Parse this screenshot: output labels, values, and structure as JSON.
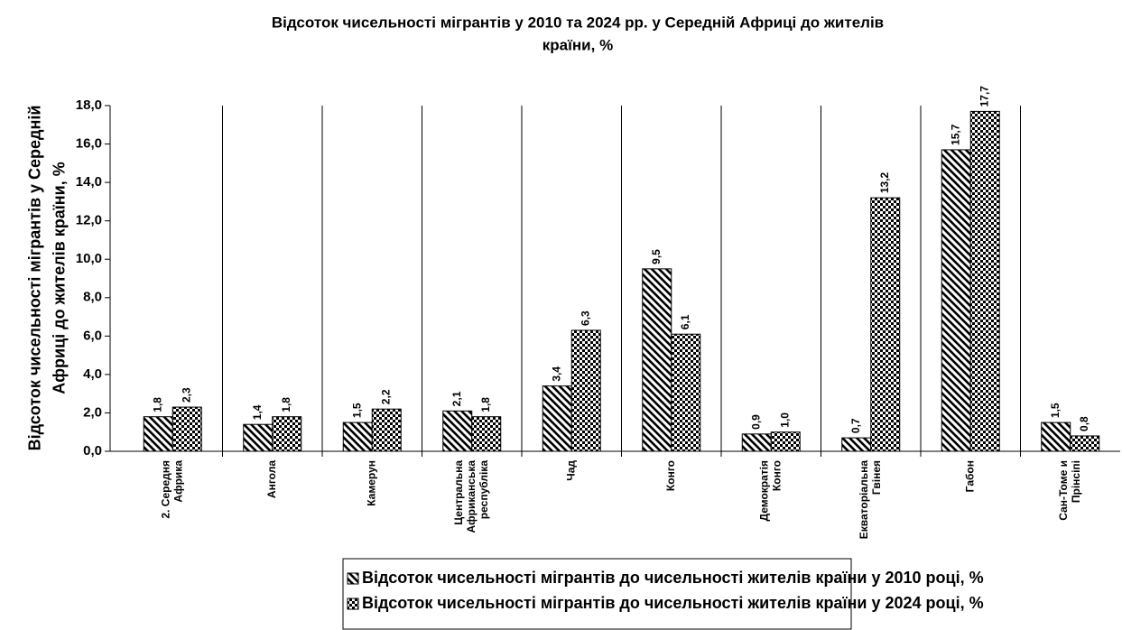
{
  "chart_data": {
    "type": "bar",
    "title": "Відсоток чисельності мігрантів у 2010 та 2024 рр.  у Середній Африці до жителів\nкраїни, %",
    "y_label": "Відсоток чисельності мігрантів у Середній\nАфриці до жителів країни, %",
    "categories": [
      "2. Середня\nАфрика",
      "Ангола",
      "Камерун",
      "Центральна\nАфриканська\nреспубліка",
      "Чад",
      "Конго",
      "Демократія\nКонго",
      "Екваторіальна\nГвінея",
      "Габон",
      "Сан-Томе и\nПрінсіпі"
    ],
    "series": [
      {
        "name": "Відсоток чисельності мігрантів до чисельності жителів країни у 2010 році, %",
        "color": "#000000",
        "pattern": "hatch",
        "values": [
          1.8,
          1.4,
          1.5,
          2.1,
          3.4,
          9.5,
          0.9,
          0.7,
          15.7,
          1.5
        ],
        "value_labels": [
          "1,8",
          "1,4",
          "1,5",
          "2,1",
          "3,4",
          "9,5",
          "0,9",
          "0,7",
          "15,7",
          "1,5"
        ]
      },
      {
        "name": "Відсоток чисельності мігрантів до чисельності жителів країни у 2024 році, %",
        "color": "#000000",
        "pattern": "checker",
        "values": [
          2.3,
          1.8,
          2.2,
          1.8,
          6.3,
          6.1,
          1.0,
          13.2,
          17.7,
          0.8
        ],
        "value_labels": [
          "2,3",
          "1,8",
          "2,2",
          "1,8",
          "6,3",
          "6,1",
          "1,0",
          "13,2",
          "17,7",
          "0,8"
        ]
      }
    ],
    "ylim": [
      0,
      18
    ],
    "yticks": [
      {
        "value": 0,
        "label": "0,0"
      },
      {
        "value": 2,
        "label": "2,0"
      },
      {
        "value": 4,
        "label": "4,0"
      },
      {
        "value": 6,
        "label": "6,0"
      },
      {
        "value": 8,
        "label": "8,0"
      },
      {
        "value": 10,
        "label": "10,0"
      },
      {
        "value": 12,
        "label": "12,0"
      },
      {
        "value": 14,
        "label": "14,0"
      },
      {
        "value": 16,
        "label": "16,0"
      },
      {
        "value": 18,
        "label": "18,0"
      }
    ],
    "legend": "bottom"
  }
}
